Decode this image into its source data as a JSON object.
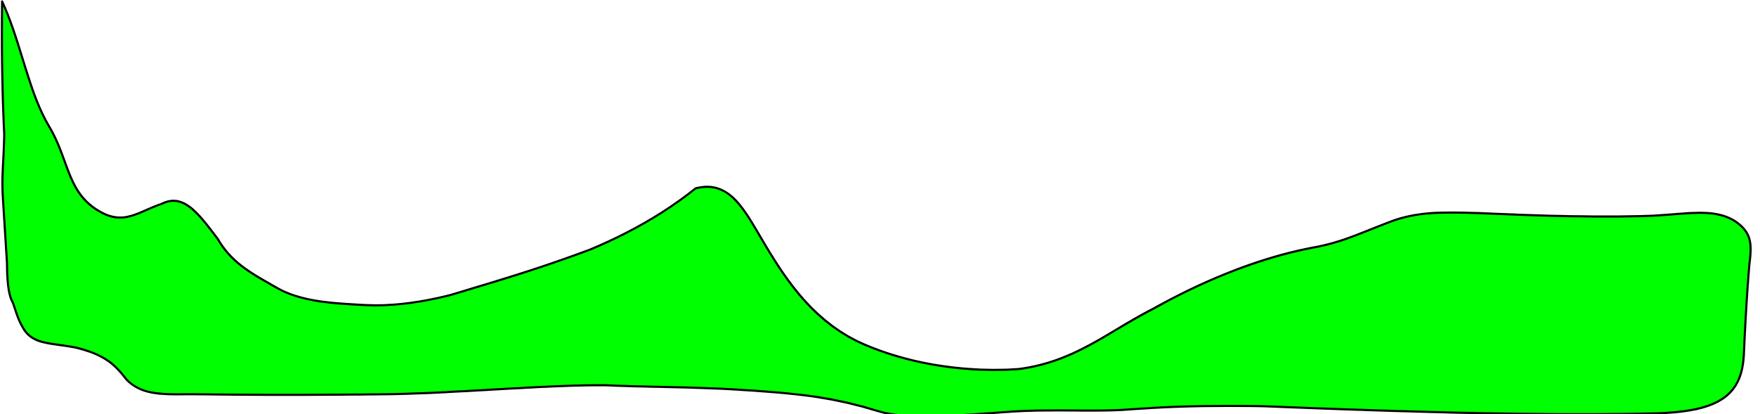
{
  "shape": {
    "fill": "#00ff00",
    "stroke": "#000000"
  },
  "background": "#ffffff"
}
